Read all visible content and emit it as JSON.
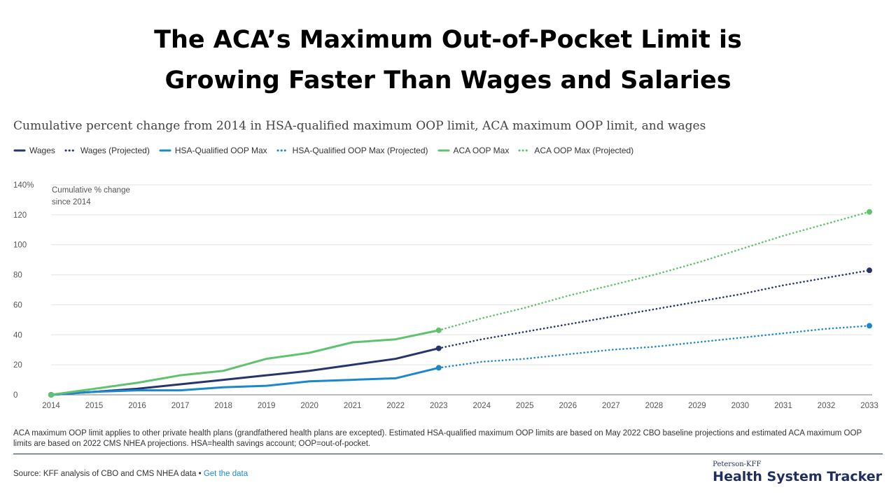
{
  "headline": {
    "line1": "The ACA’s Maximum Out-of-Pocket Limit is",
    "line2": "Growing Faster Than Wages and Salaries"
  },
  "chart_data": {
    "type": "line",
    "title": "Cumulative percent change from 2014 in HSA-qualified maximum OOP limit, ACA maximum OOP limit, and wages",
    "ylabel": "Cumulative % change since 2014",
    "annotation_lines": [
      "Cumulative % change",
      "since 2014"
    ],
    "ylim": [
      0,
      140
    ],
    "yticks": [
      0,
      20,
      40,
      60,
      80,
      100,
      120,
      140
    ],
    "ytick_labels": [
      "0",
      "20",
      "40",
      "60",
      "80",
      "100",
      "120",
      "140%"
    ],
    "x": [
      2014,
      2015,
      2016,
      2017,
      2018,
      2019,
      2020,
      2021,
      2022,
      2023,
      2024,
      2025,
      2026,
      2027,
      2028,
      2029,
      2030,
      2031,
      2032,
      2033
    ],
    "grid": true,
    "legend_position": "top-left",
    "series": [
      {
        "name": "Wages",
        "color": "#26356b",
        "style": "solid",
        "x": [
          2014,
          2015,
          2016,
          2017,
          2018,
          2019,
          2020,
          2021,
          2022,
          2023
        ],
        "values": [
          0,
          2,
          4,
          7,
          10,
          13,
          16,
          20,
          24,
          31
        ]
      },
      {
        "name": "Wages (Projected)",
        "color": "#26356b",
        "style": "dotted",
        "x": [
          2023,
          2024,
          2025,
          2026,
          2027,
          2028,
          2029,
          2030,
          2031,
          2032,
          2033
        ],
        "values": [
          31,
          37,
          42,
          47,
          52,
          57,
          62,
          67,
          73,
          78,
          83
        ]
      },
      {
        "name": "HSA-Qualified OOP Max",
        "color": "#1c88cc",
        "style": "solid",
        "x": [
          2014,
          2015,
          2016,
          2017,
          2018,
          2019,
          2020,
          2021,
          2022,
          2023
        ],
        "values": [
          0,
          2,
          3,
          3,
          5,
          6,
          9,
          10,
          11,
          18
        ]
      },
      {
        "name": "HSA-Qualified OOP Max (Projected)",
        "color": "#1c88cc",
        "style": "dotted",
        "x": [
          2023,
          2024,
          2025,
          2026,
          2027,
          2028,
          2029,
          2030,
          2031,
          2032,
          2033
        ],
        "values": [
          18,
          22,
          24,
          27,
          30,
          32,
          35,
          38,
          41,
          44,
          46
        ]
      },
      {
        "name": "ACA OOP Max",
        "color": "#5fc26e",
        "style": "solid",
        "x": [
          2014,
          2015,
          2016,
          2017,
          2018,
          2019,
          2020,
          2021,
          2022,
          2023
        ],
        "values": [
          0,
          4,
          8,
          13,
          16,
          24,
          28,
          35,
          37,
          43
        ]
      },
      {
        "name": "ACA OOP Max (Projected)",
        "color": "#5fc26e",
        "style": "dotted",
        "x": [
          2023,
          2024,
          2025,
          2026,
          2027,
          2028,
          2029,
          2030,
          2031,
          2032,
          2033
        ],
        "values": [
          43,
          51,
          58,
          66,
          73,
          80,
          88,
          97,
          106,
          114,
          122
        ]
      }
    ]
  },
  "note": "ACA maximum OOP limit applies to other private health plans (grandfathered health plans are excepted). Estimated HSA-qualified maximum OOP limits are based on May 2022 CBO baseline projections and estimated ACA maximum OOP limits are based on 2022 CMS NHEA projections. HSA=health savings account; OOP=out-of-pocket.",
  "source": {
    "text": "Source: KFF analysis of CBO and CMS NHEA data •",
    "link_label": "Get the data"
  },
  "brand": {
    "small": "Peterson-KFF",
    "big": "Health System Tracker"
  }
}
